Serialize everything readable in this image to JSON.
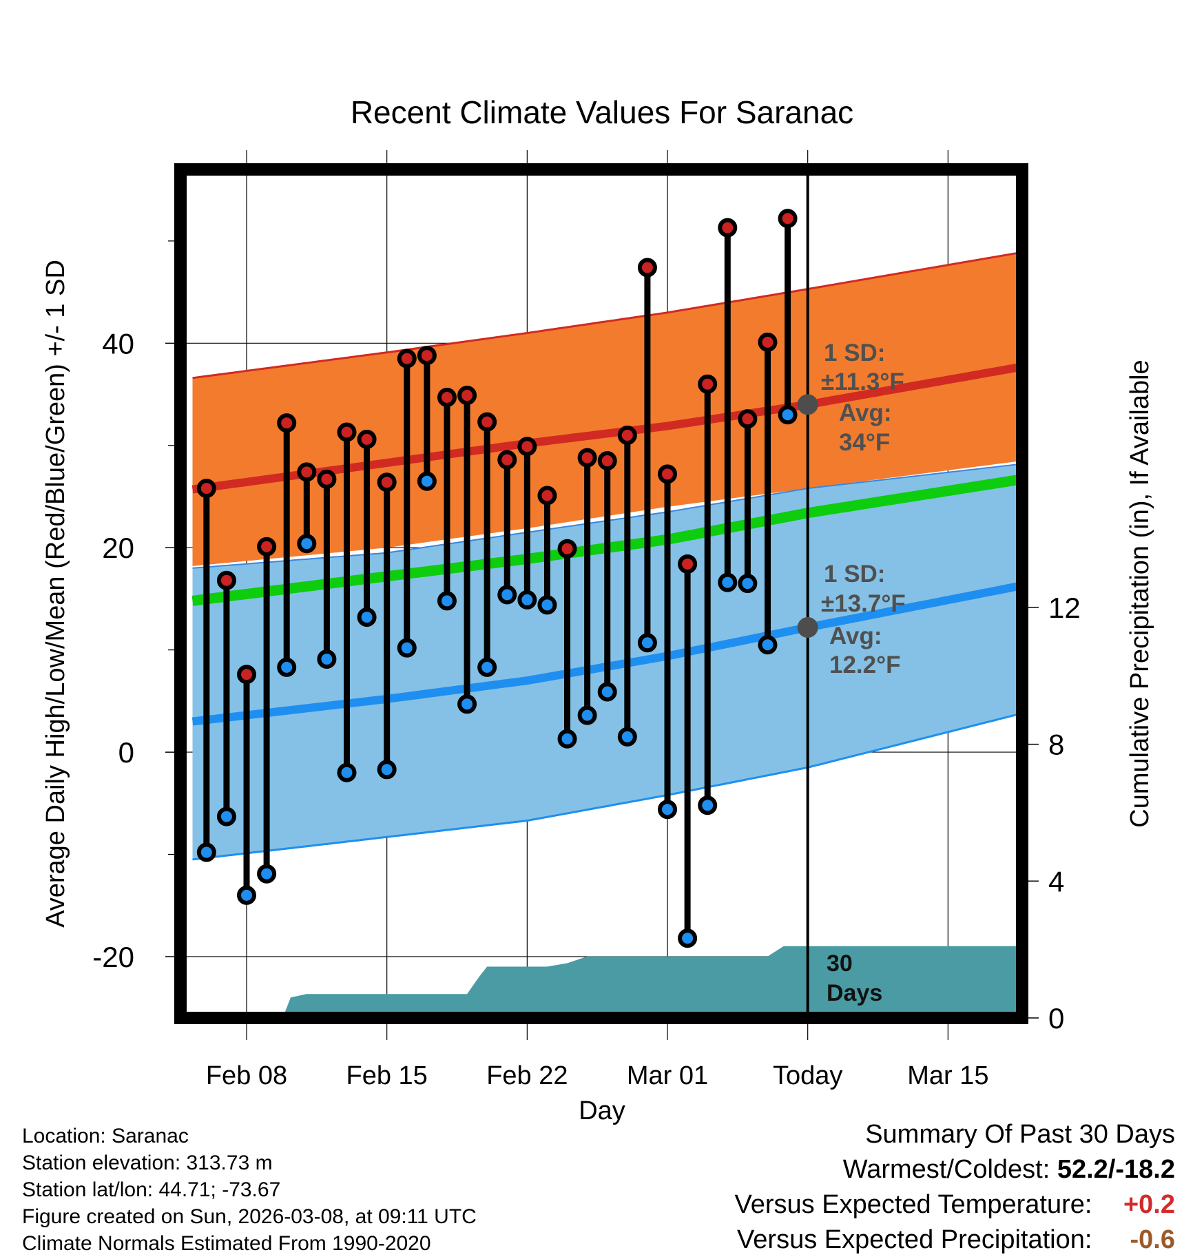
{
  "chart_data": {
    "type": "line",
    "title": "Recent Climate Values For Saranac",
    "xlabel": "Day",
    "ylabel": "Average Daily High/Low/Mean (Red/Blue/Green) +/- 1 SD",
    "ylabel_right": "Cumulative Precipitation (in), If Available",
    "ylim": [
      -26,
      57
    ],
    "ylim_right": [
      0,
      24.8
    ],
    "x_days_range": [
      -3.3,
      38.7
    ],
    "y_ticks": [
      -20,
      0,
      20,
      40
    ],
    "y_minor_ticks": [
      -10,
      10,
      30,
      50
    ],
    "y_right_ticks": [
      0,
      4,
      8,
      12
    ],
    "x_ticks": [
      {
        "day": 0,
        "label": "Feb 08"
      },
      {
        "day": 7,
        "label": "Feb 15"
      },
      {
        "day": 14,
        "label": "Feb 22"
      },
      {
        "day": 21,
        "label": "Mar 01"
      },
      {
        "day": 28,
        "label": "Today"
      },
      {
        "day": 35,
        "label": "Mar 15"
      }
    ],
    "today_day": 28,
    "normals": {
      "days": [
        -2.7,
        7,
        14,
        21,
        28,
        38.7
      ],
      "high_avg": [
        25.7,
        28.3,
        30.2,
        31.9,
        34.0,
        37.7
      ],
      "high_upper": [
        36.6,
        39.1,
        41.0,
        43.0,
        45.3,
        48.9
      ],
      "high_lower": [
        18.2,
        20.0,
        21.9,
        24.0,
        25.8,
        28.5
      ],
      "low_avg": [
        3.0,
        5.2,
        7.0,
        9.4,
        12.2,
        16.3
      ],
      "low_upper": [
        18.0,
        19.5,
        21.5,
        23.5,
        25.8,
        28.2
      ],
      "low_lower": [
        -10.5,
        -8.3,
        -6.7,
        -4.2,
        -1.5,
        3.8
      ],
      "mean_avg": [
        14.8,
        17.2,
        18.9,
        20.8,
        23.4,
        26.7
      ]
    },
    "series": [
      {
        "name": "Daily High",
        "color": "#cc2222",
        "days": [
          -2,
          -1,
          0,
          1,
          2,
          3,
          4,
          5,
          6,
          7,
          8,
          9,
          10,
          11,
          12,
          13,
          14,
          15,
          16,
          17,
          18,
          19,
          20,
          21,
          22,
          23,
          24,
          25,
          26,
          27
        ],
        "values": [
          25.8,
          16.8,
          7.6,
          20.1,
          32.2,
          27.4,
          26.7,
          31.3,
          30.6,
          26.4,
          38.5,
          38.8,
          34.7,
          34.9,
          32.3,
          28.6,
          29.9,
          25.1,
          19.9,
          28.8,
          28.5,
          31.0,
          47.4,
          27.2,
          18.4,
          36.0,
          51.3,
          32.6,
          40.1,
          52.2
        ]
      },
      {
        "name": "Daily Low",
        "color": "#1e8ff0",
        "days": [
          -2,
          -1,
          0,
          1,
          2,
          3,
          4,
          5,
          6,
          7,
          8,
          9,
          10,
          11,
          12,
          13,
          14,
          15,
          16,
          17,
          18,
          19,
          20,
          21,
          22,
          23,
          24,
          25,
          26,
          27
        ],
        "values": [
          -9.8,
          -6.3,
          -14.0,
          -11.9,
          8.3,
          20.4,
          9.1,
          -2.0,
          13.2,
          -1.7,
          10.2,
          26.5,
          14.8,
          4.7,
          8.3,
          15.4,
          14.9,
          14.4,
          1.3,
          3.6,
          5.9,
          1.5,
          10.7,
          -5.6,
          -18.2,
          -5.2,
          16.6,
          16.5,
          10.5,
          33.0
        ]
      }
    ],
    "precipitation": {
      "name": "Cumulative Precipitation",
      "color": "#4a9ba3",
      "days": [
        -1.3,
        0.5,
        1.8,
        2.2,
        3,
        6,
        9,
        11,
        11.6,
        12,
        15,
        16,
        17,
        20,
        26,
        26.8,
        27.6,
        38.7
      ],
      "values": [
        0,
        0,
        0,
        0.6,
        0.7,
        0.7,
        0.7,
        0.7,
        1.2,
        1.5,
        1.5,
        1.6,
        1.8,
        1.8,
        1.8,
        2.1,
        2.1,
        2.1
      ]
    },
    "annotations": [
      {
        "label": "1 SD:",
        "value": "±11.3°F",
        "avg_label": "Avg:",
        "avg_value": "34°F",
        "avg": 34.0,
        "day": 28
      },
      {
        "label": "1 SD:",
        "value": "±13.7°F",
        "avg_label": "Avg:",
        "avg_value": "12.2°F",
        "avg": 12.2,
        "day": 28
      }
    ],
    "period_label": [
      "30",
      "Days"
    ]
  },
  "info": {
    "location": "Location: Saranac",
    "elevation": "Station elevation: 313.73 m",
    "latlon": "Station lat/lon: 44.71; -73.67",
    "created": "Figure created on Sun, 2026-03-08, at 09:11 UTC",
    "normals": "Climate Normals Estimated From 1990-2020"
  },
  "summary": {
    "title": "Summary Of Past 30 Days",
    "warm_cold_label": "Warmest/Coldest:",
    "warm_cold_value": "52.2/-18.2",
    "temp_label": "Versus Expected Temperature:",
    "temp_value": "+0.2",
    "precip_label": "Versus Expected Precipitation:",
    "precip_value": "-0.6",
    "temp_color": "#d42a2a",
    "precip_color": "#9b5a2a"
  }
}
